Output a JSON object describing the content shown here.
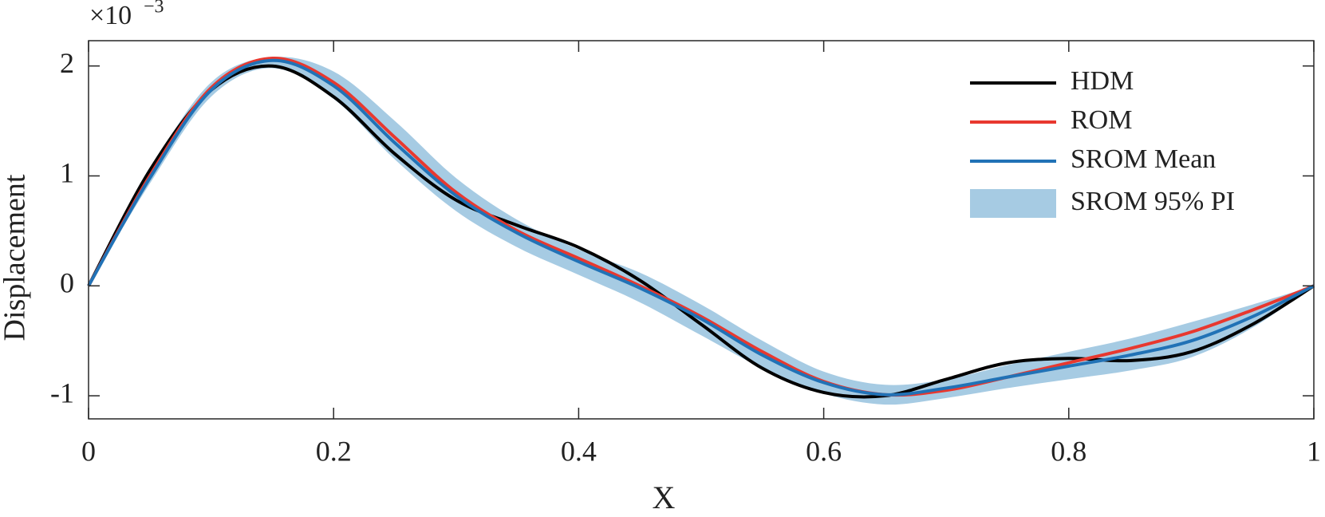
{
  "chart_data": {
    "type": "line",
    "x_label": "X",
    "y_label": "Displacement",
    "y_scale_base": "×10",
    "y_scale_exponent": "−3",
    "x": [
      0,
      0.05,
      0.1,
      0.15,
      0.2,
      0.25,
      0.3,
      0.35,
      0.4,
      0.45,
      0.5,
      0.55,
      0.6,
      0.65,
      0.7,
      0.75,
      0.8,
      0.85,
      0.9,
      0.95,
      1
    ],
    "band": {
      "name": "SROM 95% PI",
      "color": "#a6cbe3",
      "upper": [
        0,
        1.05,
        1.85,
        2.08,
        1.95,
        1.5,
        0.98,
        0.6,
        0.33,
        0.12,
        -0.17,
        -0.5,
        -0.78,
        -0.9,
        -0.85,
        -0.72,
        -0.6,
        -0.48,
        -0.33,
        -0.17,
        0
      ],
      "lower": [
        0,
        0.93,
        1.72,
        1.98,
        1.7,
        1.15,
        0.68,
        0.35,
        0.1,
        -0.15,
        -0.45,
        -0.75,
        -0.98,
        -1.08,
        -1.02,
        -0.93,
        -0.85,
        -0.77,
        -0.65,
        -0.38,
        0
      ]
    },
    "series": [
      {
        "name": "HDM",
        "color": "#000000",
        "values": [
          0,
          1.05,
          1.78,
          2.0,
          1.72,
          1.2,
          0.78,
          0.55,
          0.35,
          0.05,
          -0.35,
          -0.75,
          -0.97,
          -1.0,
          -0.85,
          -0.7,
          -0.66,
          -0.68,
          -0.6,
          -0.35,
          0
        ]
      },
      {
        "name": "ROM",
        "color": "#e8382f",
        "values": [
          0,
          1.0,
          1.8,
          2.07,
          1.85,
          1.35,
          0.85,
          0.5,
          0.25,
          0.0,
          -0.28,
          -0.6,
          -0.87,
          -0.99,
          -0.95,
          -0.83,
          -0.7,
          -0.57,
          -0.42,
          -0.22,
          0
        ]
      },
      {
        "name": "SROM Mean",
        "color": "#2172b6",
        "values": [
          0,
          0.98,
          1.78,
          2.05,
          1.82,
          1.3,
          0.82,
          0.48,
          0.22,
          -0.02,
          -0.3,
          -0.63,
          -0.88,
          -0.99,
          -0.93,
          -0.83,
          -0.73,
          -0.63,
          -0.5,
          -0.28,
          0
        ]
      }
    ],
    "xlim": [
      0,
      1
    ],
    "xticks": [
      0,
      0.2,
      0.4,
      0.6,
      0.8,
      1
    ],
    "ylim": [
      -1.21,
      2.23
    ],
    "yticks": [
      -1,
      0,
      1,
      2
    ],
    "legend": "upper-right"
  }
}
